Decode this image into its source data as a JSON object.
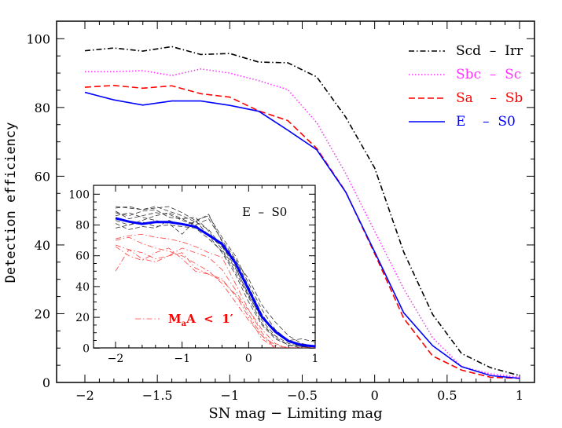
{
  "chart_data": [
    {
      "type": "line",
      "xlabel": "SN mag − Limiting mag",
      "ylabel": "Detection efficiency",
      "xlim": [
        -2.2,
        1.1
      ],
      "ylim": [
        0,
        105
      ],
      "x_ticks": [
        "-2",
        "-1.5",
        "-1",
        "-0.5",
        "0",
        "0.5",
        "1"
      ],
      "y_ticks": [
        "0",
        "20",
        "40",
        "60",
        "80",
        "100"
      ],
      "grid": false,
      "legend_position": "top-right",
      "x": [
        -2,
        -1.8,
        -1.6,
        -1.4,
        -1.2,
        -1,
        -0.8,
        -0.6,
        -0.4,
        -0.2,
        0,
        0.2,
        0.4,
        0.6,
        0.8,
        1
      ],
      "series": [
        {
          "name": "Scd  –  Irr",
          "color": "#000000",
          "style": "dash-dot",
          "values": [
            96.5,
            97.3,
            96.4,
            97.7,
            95.4,
            95.7,
            93.2,
            93.0,
            88.9,
            77.2,
            62.4,
            38.0,
            19.8,
            8.4,
            4.3,
            2.0
          ]
        },
        {
          "name": "Sbc  –  Sc",
          "color": "#ff33ff",
          "style": "dotted",
          "values": [
            90.4,
            90.4,
            90.7,
            89.3,
            91.2,
            90.0,
            87.8,
            85.2,
            75.6,
            60.8,
            44.0,
            27.3,
            13.0,
            4.6,
            2.5,
            1.5
          ]
        },
        {
          "name": "Sa    –  Sb",
          "color": "#ff0000",
          "style": "dashed",
          "values": [
            85.9,
            86.4,
            85.6,
            86.3,
            84.0,
            83.0,
            79.0,
            76.2,
            68.1,
            55.5,
            37.5,
            18.7,
            7.7,
            3.6,
            1.5,
            1.2
          ]
        },
        {
          "name": "E    –  S0",
          "color": "#0000ff",
          "style": "solid",
          "values": [
            84.4,
            82.2,
            80.7,
            81.9,
            81.9,
            80.6,
            78.9,
            73.4,
            67.7,
            55.4,
            38.0,
            20.3,
            10.7,
            4.6,
            2.0,
            1.2
          ]
        }
      ]
    },
    {
      "type": "line",
      "panel": "inset",
      "label": "E  –  S0",
      "xlim": [
        -2.1,
        1
      ],
      "ylim": [
        0,
        105
      ],
      "x_ticks": [
        "-2",
        "-1",
        "0",
        "1"
      ],
      "y_ticks": [
        "0",
        "20",
        "40",
        "60",
        "80",
        "100"
      ],
      "legend_label_main": "M",
      "legend_label_sub": "a",
      "legend_label_rest": "A  <  1′",
      "legend_color": "#ff0000",
      "x": [
        -2,
        -1.8,
        -1.6,
        -1.4,
        -1.2,
        -1,
        -0.8,
        -0.6,
        -0.4,
        -0.2,
        0,
        0.2,
        0.4,
        0.6,
        0.8,
        1
      ],
      "mean": {
        "color": "#0000ff",
        "values": [
          84.4,
          82.2,
          80.7,
          81.9,
          81.9,
          80.6,
          78.9,
          73.4,
          67.7,
          55.4,
          38.0,
          20.3,
          10.7,
          4.6,
          2.0,
          1.2
        ]
      },
      "black_curves": [
        [
          92,
          91,
          90,
          91,
          92,
          88,
          83,
          86,
          72,
          60,
          42,
          25,
          12,
          5,
          2,
          1
        ],
        [
          88,
          86,
          89,
          90,
          85,
          84,
          80,
          84,
          70,
          58,
          40,
          22,
          10,
          4,
          1,
          1
        ],
        [
          83,
          80,
          83,
          86,
          88,
          84,
          85,
          76,
          64,
          52,
          35,
          18,
          8,
          3,
          1,
          0
        ],
        [
          78,
          80,
          82,
          79,
          80,
          79,
          78,
          71,
          63,
          50,
          33,
          16,
          7,
          2,
          0,
          0
        ],
        [
          86,
          88,
          85,
          83,
          81,
          74,
          83,
          73,
          66,
          55,
          38,
          20,
          12,
          5,
          6,
          4
        ],
        [
          89,
          84,
          86,
          88,
          87,
          83,
          80,
          73,
          62,
          48,
          30,
          15,
          6,
          2,
          1,
          0
        ],
        [
          81,
          77,
          79,
          78,
          83,
          80,
          82,
          87,
          69,
          57,
          45,
          28,
          17,
          8,
          3,
          1
        ],
        [
          91,
          92,
          90,
          92,
          89,
          86,
          82,
          77,
          66,
          53,
          34,
          20,
          10,
          4,
          2,
          1
        ]
      ],
      "red_curves": [
        [
          71,
          73,
          74,
          72,
          71,
          69,
          66,
          62,
          59,
          42,
          25,
          10,
          0,
          0,
          0,
          0
        ],
        [
          67,
          64,
          62,
          58,
          60,
          65,
          62,
          59,
          51,
          38,
          22,
          8,
          0,
          0,
          0,
          0
        ],
        [
          50,
          64,
          58,
          56,
          60,
          62,
          52,
          48,
          44,
          35,
          20,
          6,
          0,
          0,
          0,
          0
        ],
        [
          66,
          60,
          57,
          62,
          65,
          58,
          50,
          48,
          45,
          34,
          25,
          12,
          3,
          0,
          0,
          0
        ],
        [
          70,
          72,
          68,
          65,
          63,
          60,
          55,
          50,
          42,
          30,
          18,
          8,
          2,
          0,
          0,
          0
        ]
      ]
    }
  ]
}
